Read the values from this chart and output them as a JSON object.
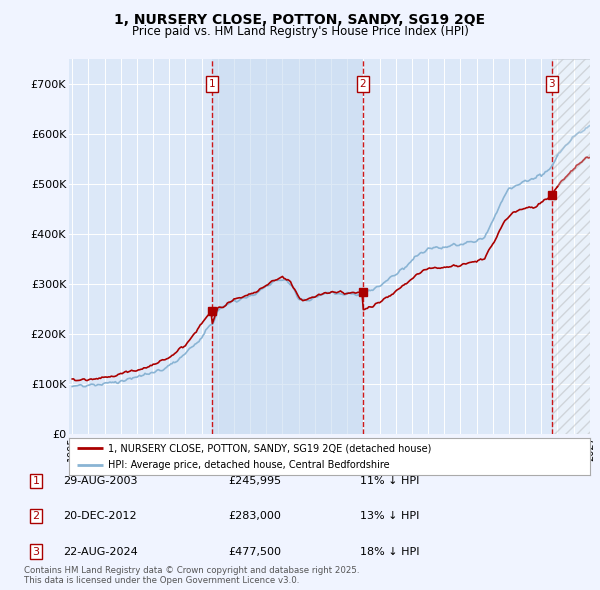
{
  "title": "1, NURSERY CLOSE, POTTON, SANDY, SG19 2QE",
  "subtitle": "Price paid vs. HM Land Registry's House Price Index (HPI)",
  "bg_color": "#f0f4ff",
  "plot_bg_color": "#dce8f8",
  "yticks": [
    0,
    100000,
    200000,
    300000,
    400000,
    500000,
    600000,
    700000
  ],
  "ytick_labels": [
    "£0",
    "£100K",
    "£200K",
    "£300K",
    "£400K",
    "£500K",
    "£600K",
    "£700K"
  ],
  "sale_labels": [
    "1",
    "2",
    "3"
  ],
  "sale_info": [
    {
      "label": "1",
      "date": "29-AUG-2003",
      "price": "£245,995",
      "pct": "11% ↓ HPI"
    },
    {
      "label": "2",
      "date": "20-DEC-2012",
      "price": "£283,000",
      "pct": "13% ↓ HPI"
    },
    {
      "label": "3",
      "date": "22-AUG-2024",
      "price": "£477,500",
      "pct": "18% ↓ HPI"
    }
  ],
  "sale_year_nums": [
    2003.66,
    2012.96,
    2024.64
  ],
  "sale_prices": [
    245995,
    283000,
    477500
  ],
  "legend_line1": "1, NURSERY CLOSE, POTTON, SANDY, SG19 2QE (detached house)",
  "legend_line2": "HPI: Average price, detached house, Central Bedfordshire",
  "footer": "Contains HM Land Registry data © Crown copyright and database right 2025.\nThis data is licensed under the Open Government Licence v3.0.",
  "hpi_color": "#8ab4d4",
  "price_color": "#aa0000",
  "sale_vline_color": "#cc0000",
  "grid_color": "#ffffff",
  "x_start_year": 1995,
  "x_end_year": 2027,
  "ylim_max": 750000,
  "future_cutoff": 2025.0
}
